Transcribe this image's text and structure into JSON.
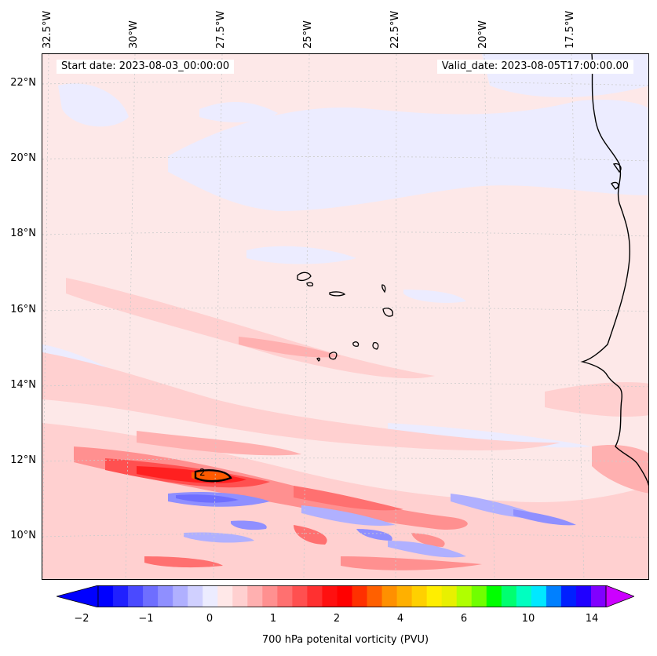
{
  "map": {
    "longitude_labels": [
      "32.5°W",
      "30°W",
      "27.5°W",
      "25°W",
      "22.5°W",
      "20°W",
      "17.5°W"
    ],
    "latitude_labels": [
      "22°N",
      "20°N",
      "18°N",
      "16°N",
      "14°N",
      "12°N",
      "10°N"
    ],
    "start_date": "Start date: 2023-08-03_00:00:00",
    "valid_date": "Valid_date: 2023-08-05T17:00:00.00",
    "contour_label": "2",
    "land_stroke": "#000000",
    "grid_color": "#cccccc"
  },
  "colorbar": {
    "title": "700 hPa potenital vorticity (PVU)",
    "tick_labels": [
      "−2",
      "−1",
      "0",
      "1",
      "2",
      "4",
      "6",
      "10",
      "14"
    ],
    "colors": [
      "#0000ff",
      "#2020ff",
      "#4a4aff",
      "#6e6eff",
      "#8f8fff",
      "#b0b0ff",
      "#d0d0ff",
      "#ececff",
      "#ffe8e8",
      "#ffd0d0",
      "#ffb0b0",
      "#ff9090",
      "#ff7070",
      "#ff5050",
      "#ff3030",
      "#ff1010",
      "#ff0000",
      "#ff3000",
      "#ff6000",
      "#ff9000",
      "#ffb000",
      "#ffd000",
      "#ffee00",
      "#e8f000",
      "#b0ff00",
      "#70ff00",
      "#00ff00",
      "#00ff70",
      "#00ffc0",
      "#00e8ff",
      "#0080ff",
      "#0020ff",
      "#2000ff",
      "#8000ff"
    ],
    "under_color": "#0000ff",
    "over_color": "#cc00ff"
  }
}
